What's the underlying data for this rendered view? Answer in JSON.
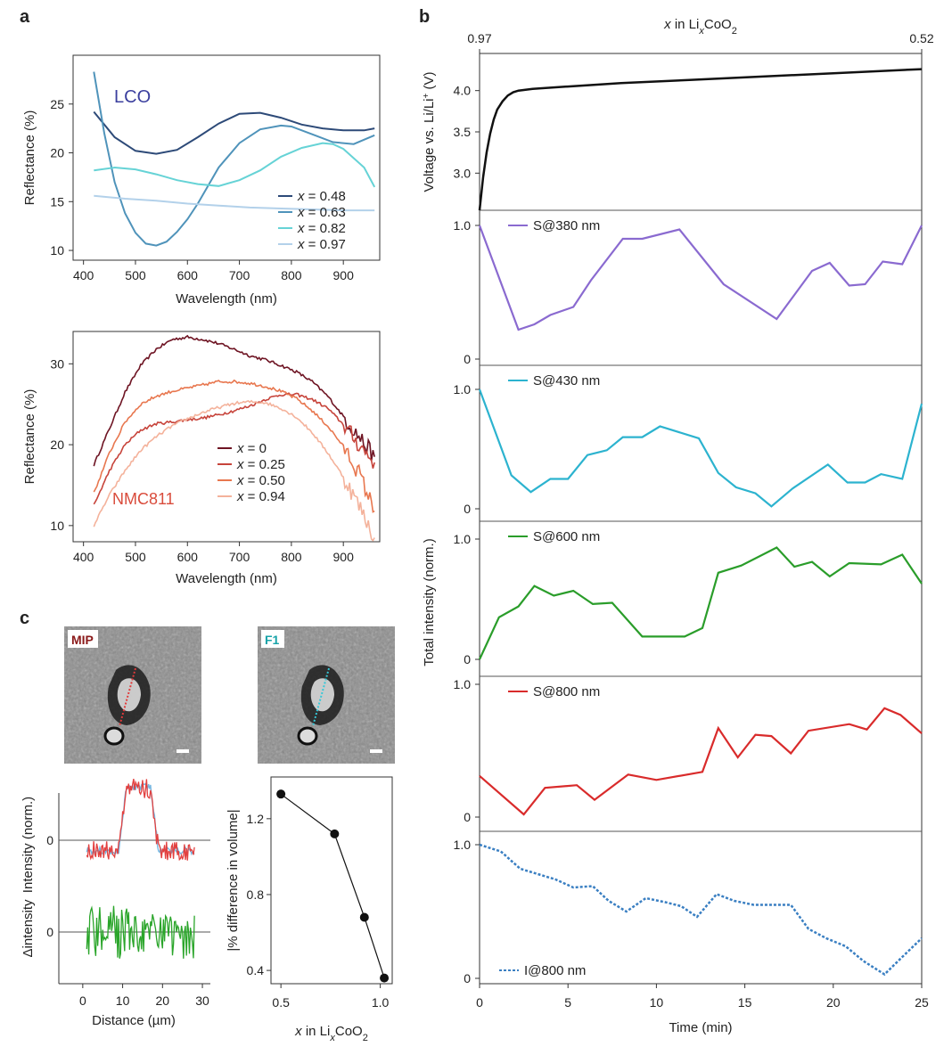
{
  "panel_letters": {
    "a": "a",
    "b": "b",
    "c": "c"
  },
  "colors": {
    "lco": [
      "#2d4a78",
      "#4f93ba",
      "#66d3d6",
      "#b3d1ea"
    ],
    "nmc": [
      "#6e1423",
      "#c7443b",
      "#e8774f",
      "#f4b29b"
    ],
    "b_series": [
      "#8a6ad0",
      "#2cb3cf",
      "#2a9d2a",
      "#d92b2b",
      "#3a7fc2"
    ],
    "lco_label": "#3b3f9e",
    "nmc_label": "#d94c3c",
    "profile_red": "#e2403f",
    "profile_blue": "#78b8e2",
    "profile_green": "#2aa52a"
  },
  "chart_data": [
    {
      "id": "a_top",
      "type": "line",
      "label": "LCO",
      "xlabel": "Wavelength (nm)",
      "ylabel": "Reflectance (%)",
      "xlim": [
        380,
        970
      ],
      "ylim": [
        9,
        30
      ],
      "xticks": [
        400,
        500,
        600,
        700,
        800,
        900
      ],
      "yticks": [
        10,
        15,
        20,
        25
      ],
      "legend_prefix": "x",
      "series": [
        {
          "name": " = 0.48",
          "x": [
            420,
            460,
            500,
            540,
            580,
            620,
            660,
            700,
            740,
            780,
            820,
            860,
            900,
            940,
            960
          ],
          "y": [
            24.2,
            21.6,
            20.2,
            19.9,
            20.3,
            21.6,
            23.0,
            24.0,
            24.1,
            23.6,
            22.9,
            22.5,
            22.3,
            22.3,
            22.5
          ]
        },
        {
          "name": " = 0.63",
          "x": [
            420,
            440,
            460,
            480,
            500,
            520,
            540,
            560,
            580,
            600,
            620,
            660,
            700,
            740,
            780,
            800,
            840,
            880,
            920,
            960
          ],
          "y": [
            28.3,
            22.0,
            17.0,
            13.8,
            11.8,
            10.7,
            10.5,
            10.9,
            11.9,
            13.2,
            14.8,
            18.5,
            21.0,
            22.4,
            22.8,
            22.7,
            21.9,
            21.1,
            20.9,
            21.8
          ]
        },
        {
          "name": " = 0.82",
          "x": [
            420,
            460,
            500,
            540,
            580,
            620,
            660,
            700,
            740,
            780,
            820,
            860,
            880,
            900,
            940,
            960
          ],
          "y": [
            18.2,
            18.5,
            18.3,
            17.8,
            17.2,
            16.8,
            16.6,
            17.2,
            18.2,
            19.6,
            20.5,
            21.0,
            20.9,
            20.4,
            18.5,
            16.5
          ]
        },
        {
          "name": " = 0.97",
          "x": [
            420,
            480,
            540,
            600,
            660,
            720,
            780,
            840,
            900,
            960
          ],
          "y": [
            15.6,
            15.3,
            15.1,
            14.8,
            14.6,
            14.4,
            14.3,
            14.2,
            14.1,
            14.1
          ]
        }
      ]
    },
    {
      "id": "a_bottom",
      "type": "line",
      "label": "NMC811",
      "xlabel": "Wavelength (nm)",
      "ylabel": "Reflectance (%)",
      "xlim": [
        380,
        970
      ],
      "ylim": [
        8,
        34
      ],
      "xticks": [
        400,
        500,
        600,
        700,
        800,
        900
      ],
      "yticks": [
        10,
        20,
        30
      ],
      "legend_prefix": "x",
      "series": [
        {
          "name": " = 0",
          "x": [
            420,
            450,
            480,
            510,
            540,
            570,
            600,
            630,
            660,
            690,
            720,
            750,
            780,
            810,
            840,
            870,
            900,
            930,
            960
          ],
          "y": [
            17.5,
            22.0,
            26.5,
            29.8,
            31.8,
            33.0,
            33.3,
            33.0,
            32.5,
            31.8,
            31.0,
            30.5,
            29.8,
            29.0,
            27.8,
            26.0,
            23.5,
            21.0,
            18.5
          ]
        },
        {
          "name": " = 0.25",
          "x": [
            420,
            450,
            480,
            510,
            540,
            570,
            600,
            630,
            660,
            690,
            720,
            750,
            780,
            810,
            840,
            870,
            900,
            930,
            960
          ],
          "y": [
            12.5,
            16.8,
            20.0,
            21.8,
            22.6,
            22.8,
            23.1,
            23.3,
            23.7,
            24.2,
            24.8,
            25.6,
            26.2,
            26.2,
            25.6,
            24.5,
            22.5,
            20.0,
            17.8
          ]
        },
        {
          "name": " = 0.50",
          "x": [
            420,
            450,
            480,
            510,
            540,
            570,
            600,
            630,
            660,
            690,
            720,
            750,
            780,
            810,
            840,
            870,
            900,
            930,
            960
          ],
          "y": [
            14.0,
            19.0,
            22.8,
            25.0,
            26.0,
            26.6,
            27.0,
            27.4,
            27.8,
            27.8,
            27.6,
            27.2,
            26.6,
            25.7,
            24.2,
            22.3,
            19.8,
            16.5,
            11.8
          ]
        },
        {
          "name": " = 0.94",
          "x": [
            420,
            450,
            480,
            510,
            540,
            570,
            600,
            630,
            660,
            690,
            720,
            750,
            780,
            810,
            840,
            870,
            900,
            930,
            960
          ],
          "y": [
            10.0,
            13.8,
            16.8,
            19.3,
            21.0,
            22.3,
            23.2,
            24.0,
            24.6,
            25.1,
            25.3,
            25.2,
            24.5,
            23.4,
            21.5,
            19.0,
            16.0,
            12.5,
            8.5
          ]
        }
      ]
    },
    {
      "id": "b_top",
      "type": "line",
      "title": "x in LixCoO2",
      "top_ticks": [
        "0.97",
        "0.52"
      ],
      "ylabel": "Voltage vs. Li/Li+ (V)",
      "xlim": [
        0,
        25
      ],
      "ylim": [
        2.55,
        4.45
      ],
      "yticks": [
        3.0,
        3.5,
        4.0
      ],
      "series": [
        {
          "name": "voltage",
          "x": [
            0,
            0.2,
            0.4,
            0.6,
            0.8,
            1.0,
            1.3,
            1.6,
            1.9,
            2.2,
            3,
            5,
            8,
            12,
            16,
            20,
            25
          ],
          "y": [
            2.5,
            2.95,
            3.25,
            3.48,
            3.65,
            3.77,
            3.87,
            3.94,
            3.98,
            4.0,
            4.02,
            4.05,
            4.09,
            4.13,
            4.17,
            4.21,
            4.26
          ]
        }
      ]
    },
    {
      "id": "b_stack",
      "type": "line",
      "xlabel": "Time (min)",
      "ylabel": "Total intensity (norm.)",
      "xlim": [
        0,
        25
      ],
      "xticks": [
        0,
        5,
        10,
        15,
        20,
        25
      ],
      "yticks": [
        "0",
        "1.0"
      ],
      "series": [
        {
          "name": "S@380 nm",
          "x": [
            0,
            2.2,
            3.1,
            4.0,
            5.3,
            6.3,
            8.1,
            9.2,
            11.3,
            13.8,
            16.8,
            18.8,
            19.8,
            20.9,
            21.8,
            22.8,
            23.9,
            25
          ],
          "y": [
            1.0,
            0.22,
            0.26,
            0.33,
            0.39,
            0.59,
            0.9,
            0.9,
            0.97,
            0.56,
            0.3,
            0.66,
            0.72,
            0.55,
            0.56,
            0.73,
            0.71,
            1.0
          ]
        },
        {
          "name": "S@430 nm",
          "x": [
            0,
            1.8,
            2.9,
            4.0,
            5.0,
            6.1,
            7.2,
            8.1,
            9.2,
            10.2,
            12.4,
            13.5,
            14.5,
            15.6,
            16.5,
            17.7,
            19.7,
            20.8,
            21.8,
            22.7,
            23.9,
            25
          ],
          "y": [
            1.0,
            0.28,
            0.14,
            0.25,
            0.25,
            0.45,
            0.49,
            0.6,
            0.6,
            0.69,
            0.59,
            0.3,
            0.18,
            0.13,
            0.02,
            0.17,
            0.37,
            0.22,
            0.22,
            0.29,
            0.25,
            0.88
          ]
        },
        {
          "name": "S@600 nm",
          "x": [
            0,
            1.1,
            2.2,
            3.1,
            4.2,
            5.3,
            6.4,
            7.5,
            9.2,
            11.6,
            12.6,
            13.5,
            14.8,
            16.8,
            17.8,
            18.8,
            19.8,
            20.9,
            22.7,
            23.9,
            25
          ],
          "y": [
            0.0,
            0.35,
            0.44,
            0.61,
            0.53,
            0.57,
            0.46,
            0.47,
            0.19,
            0.19,
            0.26,
            0.72,
            0.78,
            0.93,
            0.77,
            0.81,
            0.69,
            0.8,
            0.79,
            0.87,
            0.63
          ]
        },
        {
          "name": "S@800 nm",
          "x": [
            0,
            2.5,
            3.7,
            5.5,
            6.5,
            8.4,
            10.0,
            12.6,
            13.5,
            14.6,
            15.6,
            16.5,
            17.6,
            18.6,
            20.9,
            21.9,
            22.9,
            23.8,
            25
          ],
          "y": [
            0.31,
            0.02,
            0.22,
            0.24,
            0.13,
            0.32,
            0.28,
            0.34,
            0.67,
            0.45,
            0.62,
            0.61,
            0.48,
            0.65,
            0.7,
            0.66,
            0.82,
            0.77,
            0.63
          ]
        },
        {
          "name": "I@800 nm",
          "x": [
            0,
            1.2,
            2.3,
            3.3,
            4.3,
            5.3,
            6.4,
            7.3,
            8.3,
            9.4,
            10.5,
            11.4,
            12.3,
            13.4,
            14.4,
            15.5,
            16.5,
            17.6,
            18.6,
            19.6,
            20.7,
            21.7,
            22.9,
            23.9,
            25
          ],
          "y": [
            1.0,
            0.95,
            0.82,
            0.78,
            0.74,
            0.68,
            0.69,
            0.58,
            0.5,
            0.6,
            0.57,
            0.54,
            0.46,
            0.63,
            0.58,
            0.55,
            0.55,
            0.55,
            0.37,
            0.3,
            0.24,
            0.13,
            0.03,
            0.16,
            0.3
          ]
        }
      ]
    },
    {
      "id": "c_profile",
      "type": "line",
      "xlabel": "Distance (µm)",
      "ylabel_top": "Intensity (norm.)",
      "ylabel_bottom": "Δintensity",
      "xlim": [
        -6,
        32
      ],
      "xticks": [
        0,
        10,
        20,
        30
      ],
      "zero_label": "0"
    },
    {
      "id": "c_volume",
      "type": "scatter",
      "xlabel": "x in LixCoO2",
      "ylabel": "|% difference in volume|",
      "xlim": [
        0.45,
        1.06
      ],
      "ylim": [
        0.33,
        1.42
      ],
      "xticks": [
        0.5,
        1.0
      ],
      "yticks": [
        0.4,
        0.8,
        1.2
      ],
      "points": [
        {
          "x": 0.5,
          "y": 1.33
        },
        {
          "x": 0.77,
          "y": 1.12
        },
        {
          "x": 0.92,
          "y": 0.68
        },
        {
          "x": 1.02,
          "y": 0.36
        }
      ]
    }
  ],
  "images": [
    {
      "label": "MIP"
    },
    {
      "label": "F1"
    }
  ]
}
